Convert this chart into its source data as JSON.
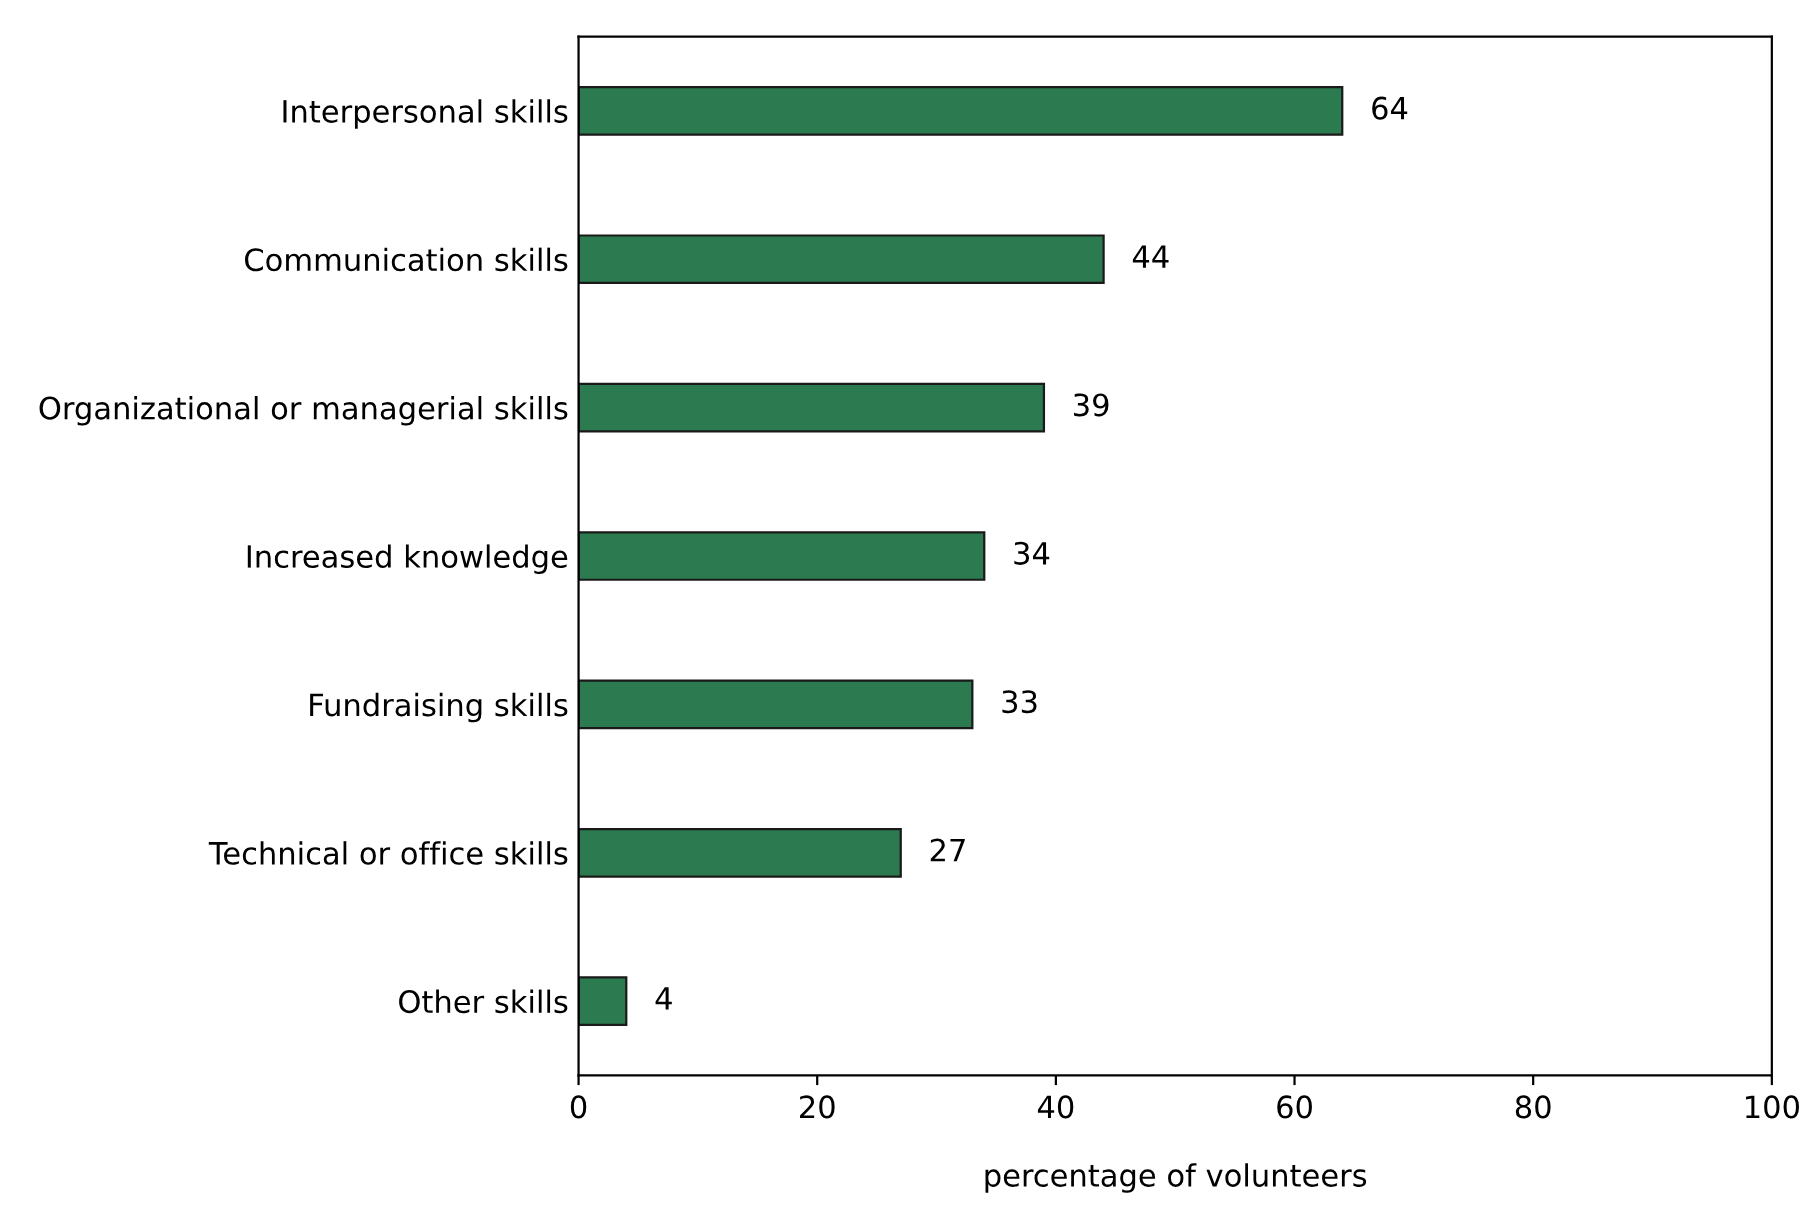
{
  "chart_data": {
    "type": "bar",
    "orientation": "horizontal",
    "xlabel": "percentage of volunteers",
    "categories": [
      "Interpersonal skills",
      "Communication skills",
      "Organizational or managerial skills",
      "Increased knowledge",
      "Fundraising skills",
      "Technical or office skills",
      "Other skills"
    ],
    "values": [
      64,
      44,
      39,
      34,
      33,
      27,
      4
    ],
    "color": "#2b7a50",
    "xlim": [
      0,
      100
    ],
    "xticks": [
      0,
      20,
      40,
      60,
      80,
      100
    ],
    "grid": false,
    "data_labels": true
  }
}
